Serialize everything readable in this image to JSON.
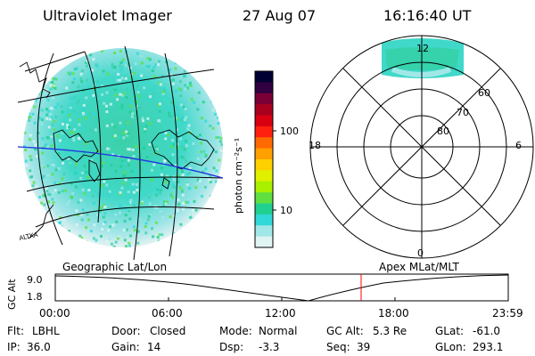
{
  "header": {
    "instrument": "Ultraviolet Imager",
    "date": "27 Aug 07",
    "time": "16:16:40 UT"
  },
  "map_panel": {
    "coastline_label": "ALTKA"
  },
  "colorbar": {
    "unit_label": "photon cm⁻²s⁻¹",
    "ticks": [
      "100",
      "10"
    ],
    "colors": [
      "#000033",
      "#300040",
      "#7a0036",
      "#aa0020",
      "#d80010",
      "#ff2010",
      "#ff6a00",
      "#ffa000",
      "#ffd000",
      "#e0f000",
      "#a8f000",
      "#60e040",
      "#20d090",
      "#30d8d8",
      "#a0e8e8",
      "#e0f4f4"
    ]
  },
  "polar_panel": {
    "mlt_labels": {
      "top": "12",
      "left": "18",
      "right": "6",
      "bottom": "0"
    },
    "lat_labels": [
      "60",
      "70",
      "80"
    ]
  },
  "altitude_panel": {
    "ylabel": "GC Alt",
    "yticks": [
      "9.0",
      "1.8"
    ],
    "left_title": "Geographic Lat/Lon",
    "right_title": "Apex MLat/MLT",
    "xticks": [
      "00:00",
      "06:00",
      "12:00",
      "18:00",
      "23:59"
    ],
    "current_time_marker": "16:16:40",
    "marker_color": "#ff0000"
  },
  "info": {
    "rows": [
      [
        {
          "label": "Flt:",
          "value": "LBHL"
        },
        {
          "label": "Door:",
          "value": "Closed"
        },
        {
          "label": "Mode:",
          "value": "Normal"
        },
        {
          "label": "GC Alt:",
          "value": "5.3 Re"
        },
        {
          "label": "GLat:",
          "value": "-61.0"
        }
      ],
      [
        {
          "label": "IP:",
          "value": "36.0"
        },
        {
          "label": "Gain:",
          "value": "14"
        },
        {
          "label": "Dsp:",
          "value": "-3.3"
        },
        {
          "label": "Seq:",
          "value": "39"
        },
        {
          "label": "GLon:",
          "value": "293.1"
        }
      ]
    ]
  }
}
